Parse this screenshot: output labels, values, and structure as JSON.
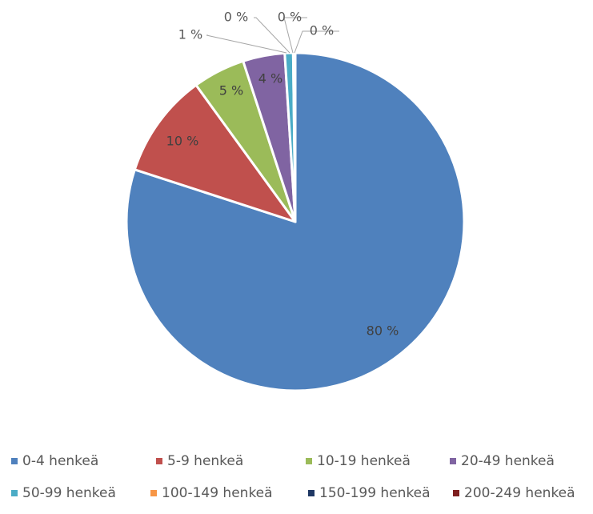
{
  "chart_data": {
    "type": "pie",
    "start_angle_deg": 0,
    "direction": "clockwise",
    "slices": [
      {
        "name": "0-4 henkeä",
        "value": 80,
        "label": "80 %",
        "color": "#4f81bd"
      },
      {
        "name": "5-9 henkeä",
        "value": 10,
        "label": "10 %",
        "color": "#c0504d"
      },
      {
        "name": "10-19 henkeä",
        "value": 5,
        "label": "5 %",
        "color": "#9bbb59"
      },
      {
        "name": "20-49 henkeä",
        "value": 4,
        "label": "4 %",
        "color": "#8064a2"
      },
      {
        "name": "50-99 henkeä",
        "value": 0.8,
        "label": "1 %",
        "color": "#4bacc6"
      },
      {
        "name": "100-149 henkeä",
        "value": 0.1,
        "label": "0 %",
        "color": "#f79646"
      },
      {
        "name": "150-199 henkeä",
        "value": 0.05,
        "label": "0 %",
        "color": "#1f3864"
      },
      {
        "name": "200-249 henkeä",
        "value": 0.05,
        "label": "0 %",
        "color": "#7f1f1f"
      }
    ],
    "legend_position": "bottom"
  }
}
